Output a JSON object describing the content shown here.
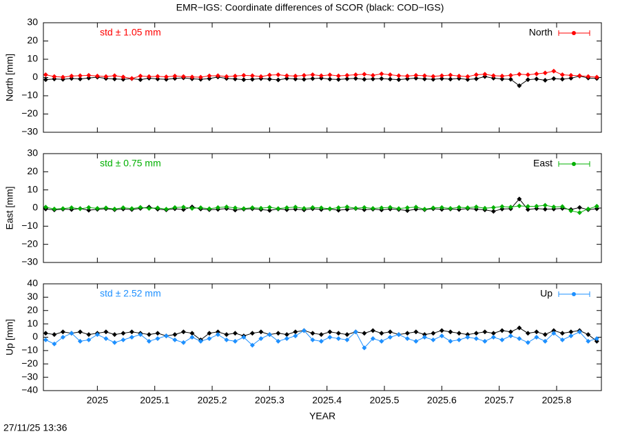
{
  "title": "EMR−IGS: Coordinate differences of SCOR (black: COD−IGS)",
  "timestamp": "27/11/25 13:36",
  "chart_data": [
    {
      "type": "line",
      "ylabel": "North [mm]",
      "annotation": "std ± 1.05 mm",
      "legend": "top-right",
      "xlim": [
        2024.906,
        2025.878
      ],
      "ylim": [
        -30,
        30
      ],
      "xticks": [
        2025,
        2025.1,
        2025.2,
        2025.3,
        2025.4,
        2025.5,
        2025.6,
        2025.7,
        2025.8
      ],
      "yticks": [
        {
          "value": -30,
          "label": "−30"
        },
        {
          "value": -20,
          "label": "−20"
        },
        {
          "value": -10,
          "label": "−10"
        },
        0,
        10,
        20,
        30
      ],
      "x": [
        2024.91,
        2024.925,
        2024.94,
        2024.955,
        2024.97,
        2024.985,
        2025,
        2025.015,
        2025.03,
        2025.045,
        2025.06,
        2025.075,
        2025.09,
        2025.105,
        2025.12,
        2025.135,
        2025.15,
        2025.165,
        2025.18,
        2025.195,
        2025.21,
        2025.225,
        2025.24,
        2025.255,
        2025.27,
        2025.285,
        2025.3,
        2025.315,
        2025.33,
        2025.345,
        2025.36,
        2025.375,
        2025.39,
        2025.405,
        2025.42,
        2025.435,
        2025.45,
        2025.465,
        2025.48,
        2025.495,
        2025.51,
        2025.525,
        2025.54,
        2025.555,
        2025.57,
        2025.585,
        2025.6,
        2025.615,
        2025.63,
        2025.645,
        2025.66,
        2025.675,
        2025.69,
        2025.705,
        2025.72,
        2025.735,
        2025.75,
        2025.765,
        2025.78,
        2025.795,
        2025.81,
        2025.825,
        2025.84,
        2025.855,
        2025.87
      ],
      "series": [
        {
          "name": "North",
          "color": "#ff0000",
          "values": [
            1.5,
            0.5,
            0.2,
            0.8,
            1.0,
            1.2,
            0.8,
            0.5,
            1.0,
            0.3,
            -0.5,
            0.8,
            0.5,
            0.6,
            0.4,
            0.8,
            0.5,
            0.3,
            0.2,
            0.9,
            1.0,
            0.5,
            0.8,
            1.2,
            1.0,
            0.5,
            1.3,
            1.5,
            1.0,
            0.8,
            1.2,
            1.5,
            1.0,
            1.4,
            0.9,
            1.2,
            1.5,
            1.8,
            1.2,
            2.0,
            1.5,
            1.0,
            0.8,
            1.2,
            1.0,
            0.6,
            1.0,
            1.3,
            0.8,
            0.5,
            1.5,
            1.8,
            1.0,
            0.8,
            1.2,
            1.8,
            1.5,
            2.0,
            2.5,
            3.5,
            1.5,
            1.2,
            1.0,
            0.5,
            0.2
          ]
        },
        {
          "color": "#000000",
          "values": [
            -1.2,
            -0.8,
            -1.0,
            -0.5,
            -0.8,
            -0.3,
            0.2,
            -0.5,
            -0.8,
            -1.0,
            -0.6,
            -1.2,
            -0.4,
            -0.8,
            -1.0,
            -0.5,
            -0.2,
            -0.7,
            -1.0,
            -0.6,
            0.3,
            -0.5,
            -0.8,
            -1.2,
            -1.0,
            -0.6,
            -0.9,
            -1.3,
            -0.5,
            -0.8,
            -1.0,
            -0.6,
            -0.4,
            -0.9,
            -1.1,
            -0.7,
            -0.5,
            -1.0,
            -0.8,
            -0.6,
            -0.9,
            -1.2,
            -0.7,
            -0.4,
            -0.8,
            -1.0,
            -0.6,
            -0.9,
            -0.5,
            -1.1,
            -0.7,
            0.5,
            -0.4,
            -0.8,
            -1.0,
            -4.5,
            -1.2,
            -0.8,
            -1.5,
            -0.6,
            -0.9,
            -0.4,
            0.8,
            -0.3,
            -0.5
          ]
        }
      ]
    },
    {
      "type": "line",
      "ylabel": "East [mm]",
      "annotation": "std ± 0.75 mm",
      "legend": "top-right",
      "xlim": [
        2024.906,
        2025.878
      ],
      "ylim": [
        -30,
        30
      ],
      "xticks": [
        2025,
        2025.1,
        2025.2,
        2025.3,
        2025.4,
        2025.5,
        2025.6,
        2025.7,
        2025.8
      ],
      "yticks": [
        {
          "value": -30,
          "label": "−30"
        },
        {
          "value": -20,
          "label": "−20"
        },
        {
          "value": -10,
          "label": "−10"
        },
        0,
        10,
        20,
        30
      ],
      "x": [
        2024.91,
        2024.925,
        2024.94,
        2024.955,
        2024.97,
        2024.985,
        2025,
        2025.015,
        2025.03,
        2025.045,
        2025.06,
        2025.075,
        2025.09,
        2025.105,
        2025.12,
        2025.135,
        2025.15,
        2025.165,
        2025.18,
        2025.195,
        2025.21,
        2025.225,
        2025.24,
        2025.255,
        2025.27,
        2025.285,
        2025.3,
        2025.315,
        2025.33,
        2025.345,
        2025.36,
        2025.375,
        2025.39,
        2025.405,
        2025.42,
        2025.435,
        2025.45,
        2025.465,
        2025.48,
        2025.495,
        2025.51,
        2025.525,
        2025.54,
        2025.555,
        2025.57,
        2025.585,
        2025.6,
        2025.615,
        2025.63,
        2025.645,
        2025.66,
        2025.675,
        2025.69,
        2025.705,
        2025.72,
        2025.735,
        2025.75,
        2025.765,
        2025.78,
        2025.795,
        2025.81,
        2025.825,
        2025.84,
        2025.855,
        2025.87
      ],
      "series": [
        {
          "name": "East",
          "color": "#00b000",
          "values": [
            0.5,
            -0.5,
            -0.3,
            0.2,
            -0.4,
            0.3,
            -0.2,
            0.1,
            -0.5,
            0.2,
            -0.3,
            0.4,
            -0.2,
            0.1,
            -0.6,
            0.3,
            0.5,
            -0.2,
            0.2,
            -0.4,
            0.3,
            0.6,
            0.1,
            -0.3,
            0.2,
            -0.1,
            0.4,
            -0.3,
            0.2,
            0.5,
            -0.2,
            0.3,
            0.1,
            -0.4,
            0.2,
            0.6,
            -0.1,
            0.3,
            -0.2,
            0.1,
            0.4,
            -0.3,
            0.2,
            0.5,
            -0.6,
            0.1,
            0.3,
            -0.2,
            0.4,
            0.2,
            0.6,
            -0.1,
            0.3,
            0.8,
            0.5,
            1.2,
            0.9,
            1.0,
            1.5,
            0.6,
            0.8,
            -1.5,
            -2.5,
            -0.5,
            1.0
          ]
        },
        {
          "color": "#000000",
          "values": [
            -0.5,
            -1.0,
            -0.6,
            -0.8,
            -0.3,
            -1.2,
            -0.7,
            -0.4,
            -0.9,
            -0.5,
            -0.8,
            -0.2,
            0.5,
            -0.6,
            -1.0,
            -0.4,
            -0.8,
            0.6,
            -0.5,
            -0.9,
            -0.7,
            -0.3,
            -1.1,
            -0.6,
            -0.4,
            -0.8,
            -1.3,
            -0.5,
            -0.9,
            -0.6,
            -1.0,
            -0.4,
            -0.8,
            -0.5,
            -1.2,
            -0.7,
            -0.3,
            -0.9,
            -0.6,
            -1.0,
            -0.5,
            -0.8,
            -1.4,
            -0.6,
            -0.9,
            -0.4,
            -0.7,
            -0.5,
            -0.8,
            -0.3,
            -0.6,
            -1.0,
            -1.8,
            -0.5,
            -0.4,
            5.0,
            -0.8,
            -0.3,
            -0.6,
            -0.5,
            -0.2,
            -0.8,
            0.3,
            -0.9,
            -0.4
          ]
        }
      ]
    },
    {
      "type": "line",
      "ylabel": "Up [mm]",
      "xlabel": "YEAR",
      "annotation": "std ± 2.52 mm",
      "legend": "top-right",
      "xlim": [
        2024.906,
        2025.878
      ],
      "ylim": [
        -40,
        40
      ],
      "xticks": [
        2025,
        2025.1,
        2025.2,
        2025.3,
        2025.4,
        2025.5,
        2025.6,
        2025.7,
        2025.8
      ],
      "yticks": [
        {
          "value": -40,
          "label": "−40"
        },
        {
          "value": -30,
          "label": "−30"
        },
        {
          "value": -20,
          "label": "−20"
        },
        {
          "value": -10,
          "label": "−10"
        },
        0,
        10,
        20,
        30,
        40
      ],
      "x": [
        2024.91,
        2024.925,
        2024.94,
        2024.955,
        2024.97,
        2024.985,
        2025,
        2025.015,
        2025.03,
        2025.045,
        2025.06,
        2025.075,
        2025.09,
        2025.105,
        2025.12,
        2025.135,
        2025.15,
        2025.165,
        2025.18,
        2025.195,
        2025.21,
        2025.225,
        2025.24,
        2025.255,
        2025.27,
        2025.285,
        2025.3,
        2025.315,
        2025.33,
        2025.345,
        2025.36,
        2025.375,
        2025.39,
        2025.405,
        2025.42,
        2025.435,
        2025.45,
        2025.465,
        2025.48,
        2025.495,
        2025.51,
        2025.525,
        2025.54,
        2025.555,
        2025.57,
        2025.585,
        2025.6,
        2025.615,
        2025.63,
        2025.645,
        2025.66,
        2025.675,
        2025.69,
        2025.705,
        2025.72,
        2025.735,
        2025.75,
        2025.765,
        2025.78,
        2025.795,
        2025.81,
        2025.825,
        2025.84,
        2025.855,
        2025.87
      ],
      "series": [
        {
          "name": "Up",
          "color": "#1e90ff",
          "values": [
            -2,
            -5,
            0,
            3,
            -3,
            -2,
            2,
            -1,
            -4,
            -2,
            0,
            2,
            -3,
            -1,
            1,
            -2,
            -4,
            0,
            -3,
            -1,
            2,
            -2,
            -3,
            0,
            -6,
            -1,
            2,
            -3,
            -1,
            1,
            5,
            -2,
            -3,
            0,
            -1,
            -2,
            4,
            -8,
            -1,
            -3,
            0,
            2,
            -1,
            -3,
            0,
            -2,
            1,
            -3,
            -2,
            0,
            -1,
            -3,
            0,
            -2,
            1,
            -1,
            -4,
            0,
            -3,
            3,
            -2,
            1,
            4,
            -3,
            -1
          ]
        },
        {
          "color": "#000000",
          "values": [
            3,
            2,
            4,
            3,
            4,
            2,
            3,
            4,
            2,
            3,
            4,
            3,
            2,
            3,
            1,
            2,
            4,
            3,
            -2,
            3,
            4,
            2,
            3,
            1,
            3,
            4,
            2,
            3,
            2,
            4,
            5,
            3,
            2,
            4,
            3,
            2,
            4,
            3,
            5,
            3,
            4,
            2,
            3,
            4,
            2,
            3,
            5,
            4,
            3,
            2,
            3,
            4,
            3,
            5,
            4,
            7,
            3,
            4,
            2,
            5,
            3,
            4,
            5,
            2,
            -3
          ]
        }
      ]
    }
  ]
}
